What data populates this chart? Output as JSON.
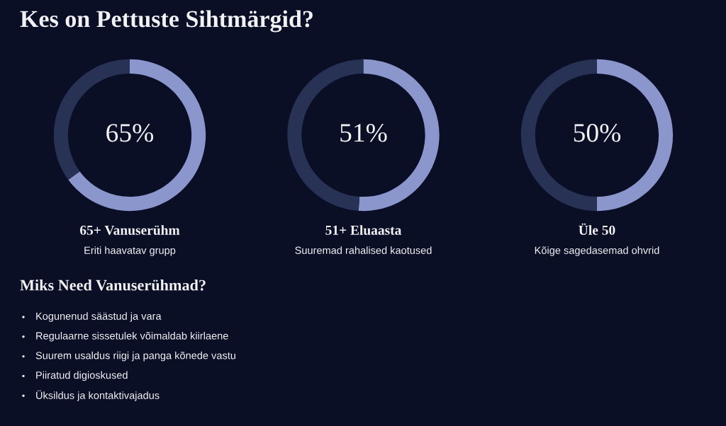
{
  "chart_data": [
    {
      "type": "other",
      "title": "Kes on Pettuste Sihtmärgid?"
    },
    {
      "type": "donut",
      "title": "65+ Vanuserühm",
      "subtitle": "Eriti haavatav grupp",
      "categories": [
        null,
        null
      ],
      "values": [
        65,
        35
      ],
      "colors": [
        "#8b97cc",
        "#283254"
      ],
      "value_labels": [
        "65%",
        null
      ]
    },
    {
      "type": "donut",
      "title": "51+ Eluaasta",
      "subtitle": "Suuremad rahalised kaotused",
      "categories": [
        null,
        null
      ],
      "values": [
        51,
        49
      ],
      "colors": [
        "#8b97cc",
        "#283254"
      ],
      "value_labels": [
        "51%",
        null
      ]
    },
    {
      "type": "donut",
      "title": "Üle 50",
      "subtitle": "Kõige sagedasemad ohvrid",
      "categories": [
        null,
        null
      ],
      "values": [
        50,
        50
      ],
      "colors": [
        "#8b97cc",
        "#283254"
      ],
      "value_labels": [
        "50%",
        null
      ]
    },
    {
      "type": "other",
      "title": "Miks Need Vanuserühmad?",
      "annotations": [
        "Kogunenud säästud ja vara",
        "Regulaarne sissetulek võimaldab kiirlaene",
        "Suurem usaldus riigi ja panga kõnede vastu",
        "Piiratud digioskused",
        "Üksildus ja kontaktivajadus"
      ]
    }
  ]
}
